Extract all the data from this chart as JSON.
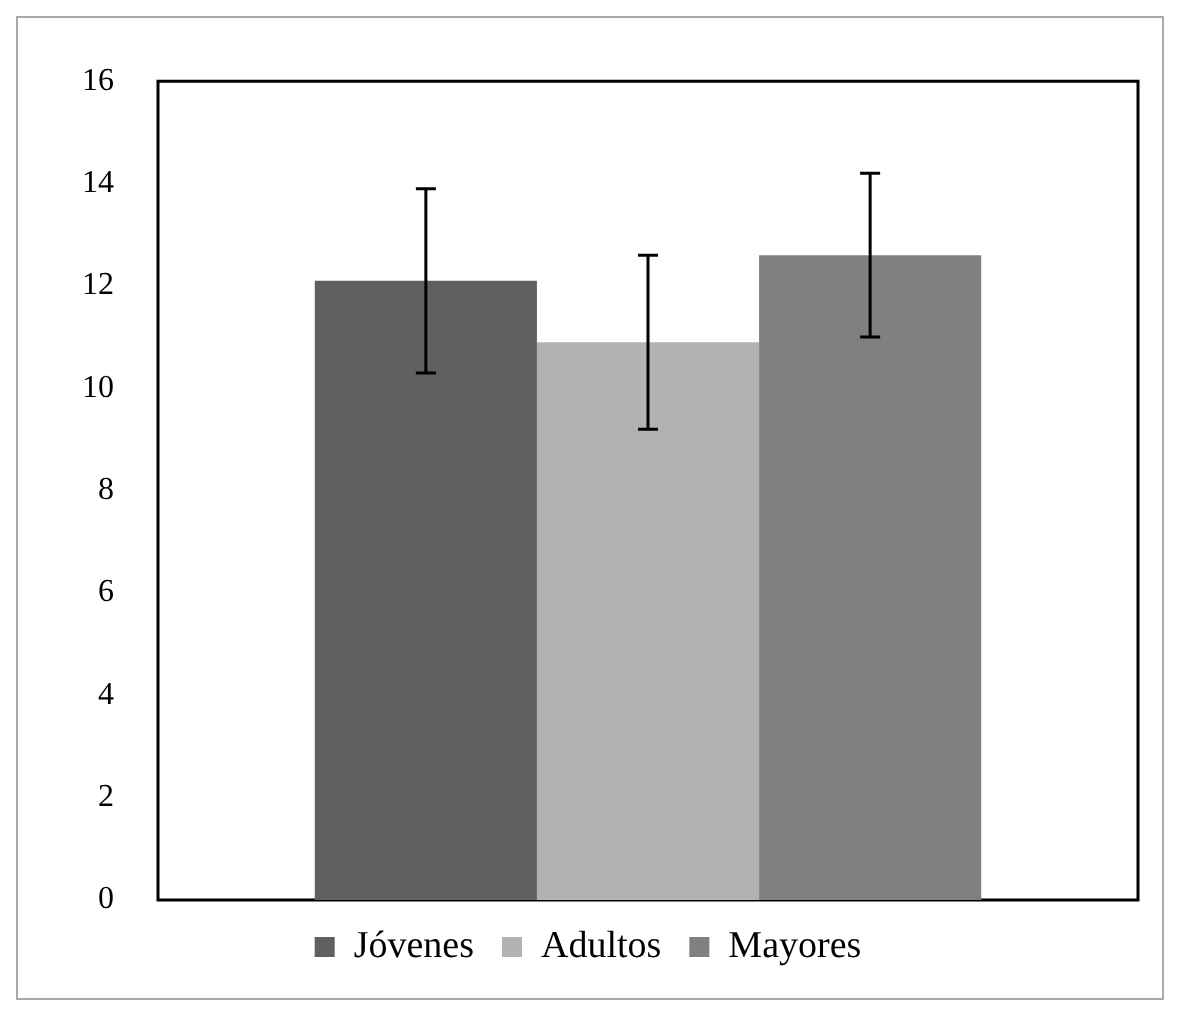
{
  "chart_data": {
    "type": "bar",
    "categories": [
      null
    ],
    "series": [
      {
        "name": "Jóvenes",
        "color": "#606060",
        "values": [
          12.1
        ],
        "errors": [
          1.8
        ]
      },
      {
        "name": "Adultos",
        "color": "#b2b2b2",
        "values": [
          10.9
        ],
        "errors": [
          1.7
        ]
      },
      {
        "name": "Mayores",
        "color": "#808080",
        "values": [
          12.6
        ],
        "errors": [
          1.6
        ]
      }
    ],
    "ylim": [
      0,
      16
    ],
    "yticks": [
      0,
      2,
      4,
      6,
      8,
      10,
      12,
      14,
      16
    ],
    "grid": false,
    "legend": "bottom"
  }
}
